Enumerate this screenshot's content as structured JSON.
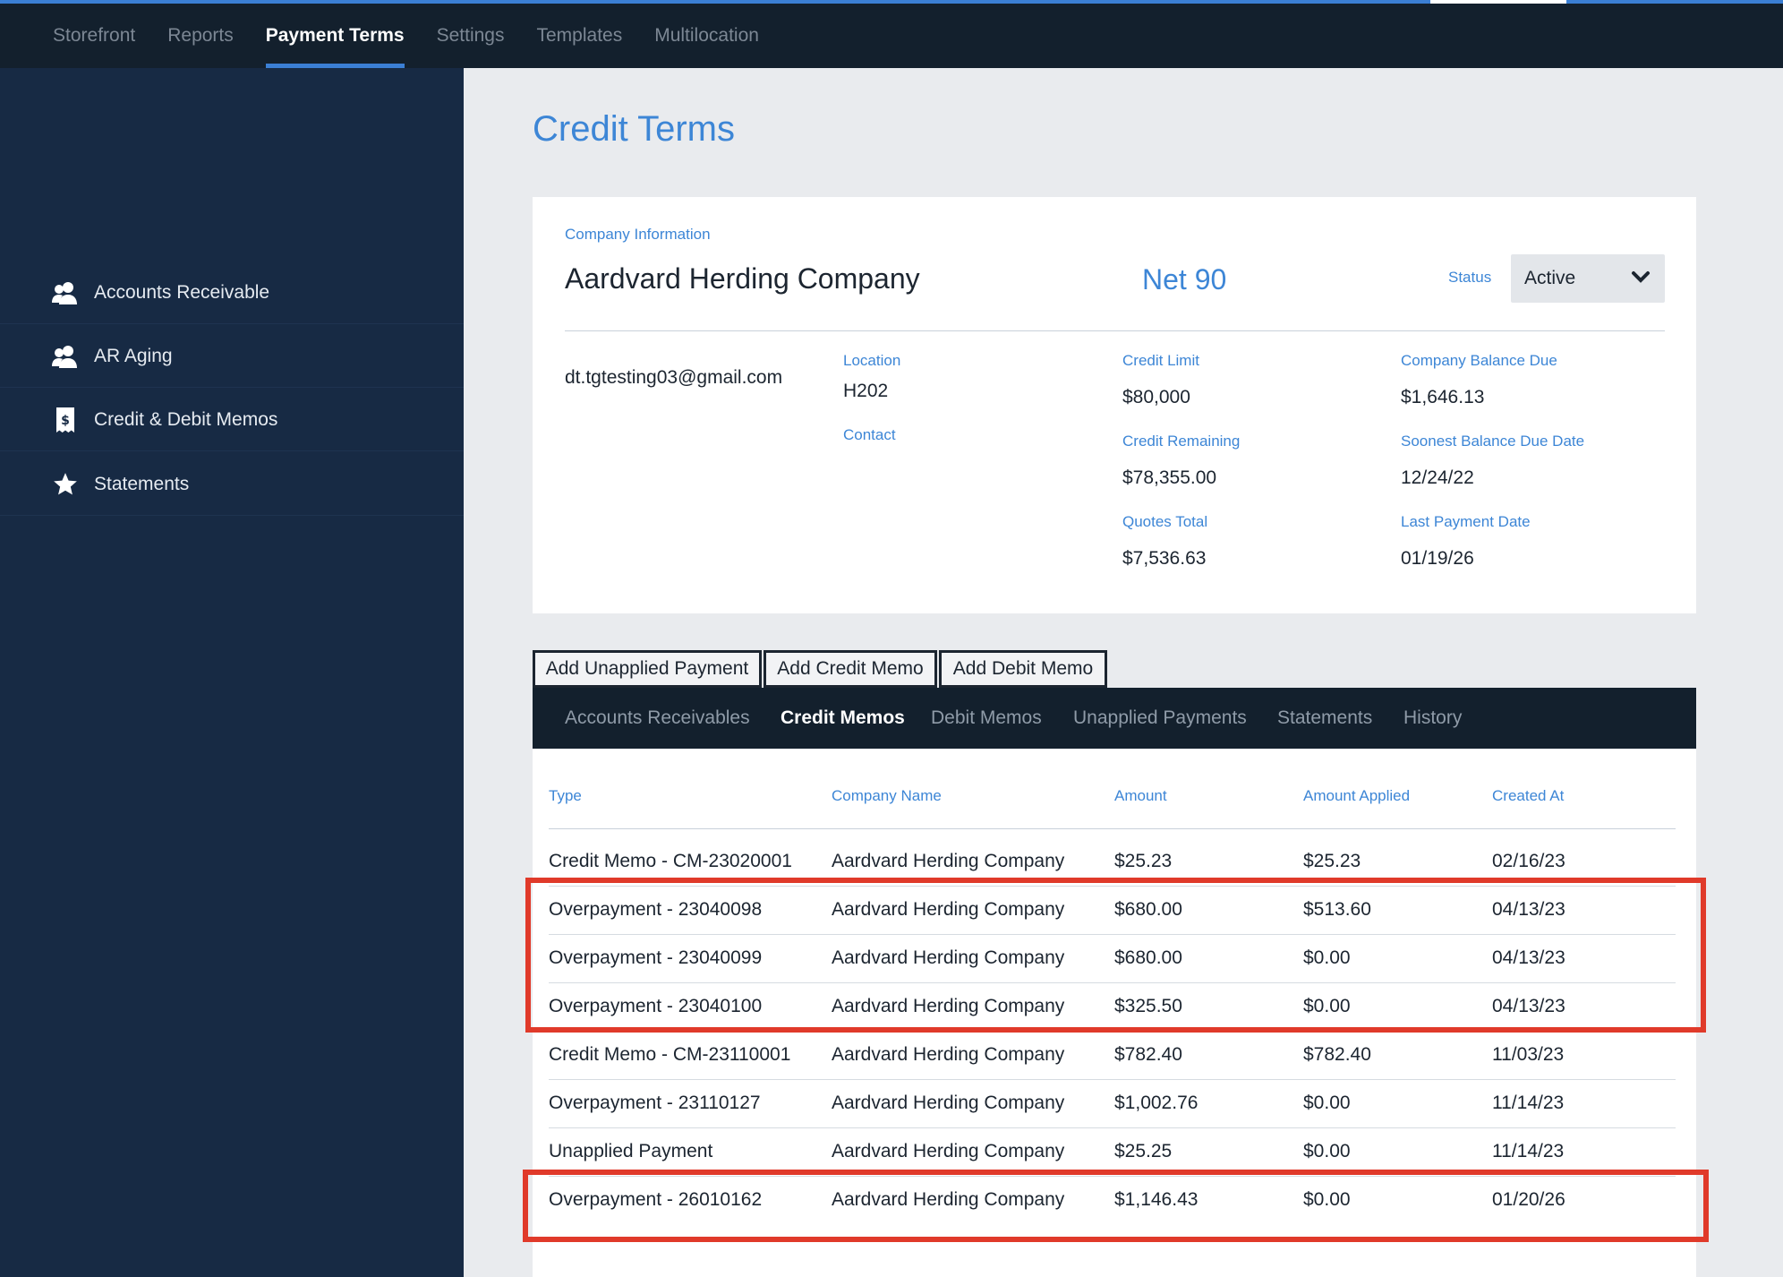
{
  "topnav": {
    "items": [
      "Storefront",
      "Reports",
      "Payment Terms",
      "Settings",
      "Templates",
      "Multilocation"
    ],
    "active_index": 2
  },
  "sidebar": {
    "items": [
      {
        "label": "Accounts Receivable",
        "icon": "users-icon"
      },
      {
        "label": "AR Aging",
        "icon": "users-icon"
      },
      {
        "label": "Credit & Debit Memos",
        "icon": "receipt-icon"
      },
      {
        "label": "Statements",
        "icon": "star-icon"
      }
    ]
  },
  "page": {
    "title": "Credit Terms"
  },
  "company": {
    "section_label": "Company Information",
    "name": "Aardvard Herding Company",
    "terms": "Net 90",
    "status_label": "Status",
    "status_value": "Active",
    "email": "dt.tgtesting03@gmail.com",
    "location_label": "Location",
    "location_value": "H202",
    "contact_label": "Contact",
    "credit_limit_label": "Credit Limit",
    "credit_limit_value": "$80,000",
    "credit_remaining_label": "Credit Remaining",
    "credit_remaining_value": "$78,355.00",
    "quotes_total_label": "Quotes Total",
    "quotes_total_value": "$7,536.63",
    "balance_due_label": "Company Balance Due",
    "balance_due_value": "$1,646.13",
    "soonest_due_label": "Soonest Balance Due Date",
    "soonest_due_value": "12/24/22",
    "last_payment_label": "Last Payment Date",
    "last_payment_value": "01/19/26"
  },
  "actions": {
    "add_unapplied_payment": "Add Unapplied Payment",
    "add_credit_memo": "Add Credit Memo",
    "add_debit_memo": "Add Debit Memo"
  },
  "tabs": {
    "items": [
      "Accounts Receivables",
      "Credit Memos",
      "Debit Memos",
      "Unapplied Payments",
      "Statements",
      "History"
    ],
    "active_index": 1
  },
  "table": {
    "columns": [
      "Type",
      "Company Name",
      "Amount",
      "Amount Applied",
      "Created At"
    ],
    "rows": [
      [
        "Credit Memo - CM-23020001",
        "Aardvard Herding Company",
        "$25.23",
        "$25.23",
        "02/16/23"
      ],
      [
        "Overpayment - 23040098",
        "Aardvard Herding Company",
        "$680.00",
        "$513.60",
        "04/13/23"
      ],
      [
        "Overpayment - 23040099",
        "Aardvard Herding Company",
        "$680.00",
        "$0.00",
        "04/13/23"
      ],
      [
        "Overpayment - 23040100",
        "Aardvard Herding Company",
        "$325.50",
        "$0.00",
        "04/13/23"
      ],
      [
        "Credit Memo - CM-23110001",
        "Aardvard Herding Company",
        "$782.40",
        "$782.40",
        "11/03/23"
      ],
      [
        "Overpayment - 23110127",
        "Aardvard Herding Company",
        "$1,002.76",
        "$0.00",
        "11/14/23"
      ],
      [
        "Unapplied Payment",
        "Aardvard Herding Company",
        "$25.25",
        "$0.00",
        "11/14/23"
      ],
      [
        "Overpayment - 26010162",
        "Aardvard Herding Company",
        "$1,146.43",
        "$0.00",
        "01/20/26"
      ]
    ]
  },
  "colors": {
    "accent": "#3d86d6",
    "nav_bg": "#13202d",
    "sidebar_bg": "#172a44",
    "highlight": "#e03a2a"
  }
}
